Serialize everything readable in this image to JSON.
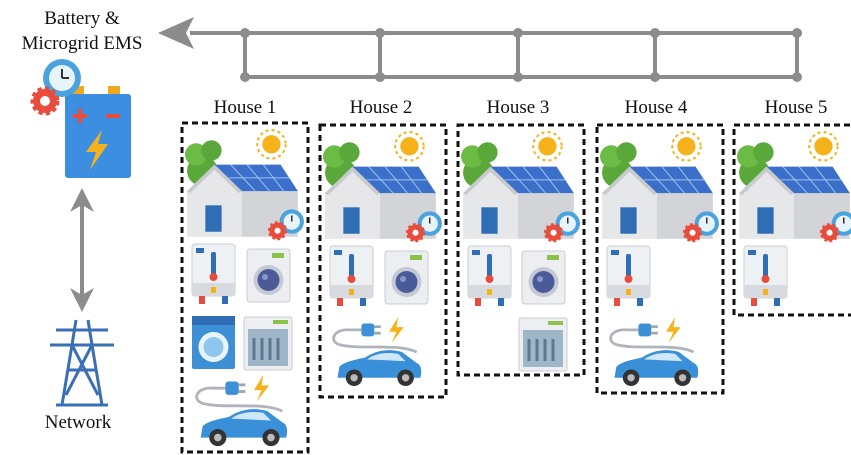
{
  "ems": {
    "label": [
      "Battery &",
      "Microgrid EMS"
    ]
  },
  "network": {
    "label": "Network"
  },
  "houses": [
    {
      "label": "House 1"
    },
    {
      "label": "House 2"
    },
    {
      "label": "House 3"
    },
    {
      "label": "House 4"
    },
    {
      "label": "House 5"
    }
  ]
}
